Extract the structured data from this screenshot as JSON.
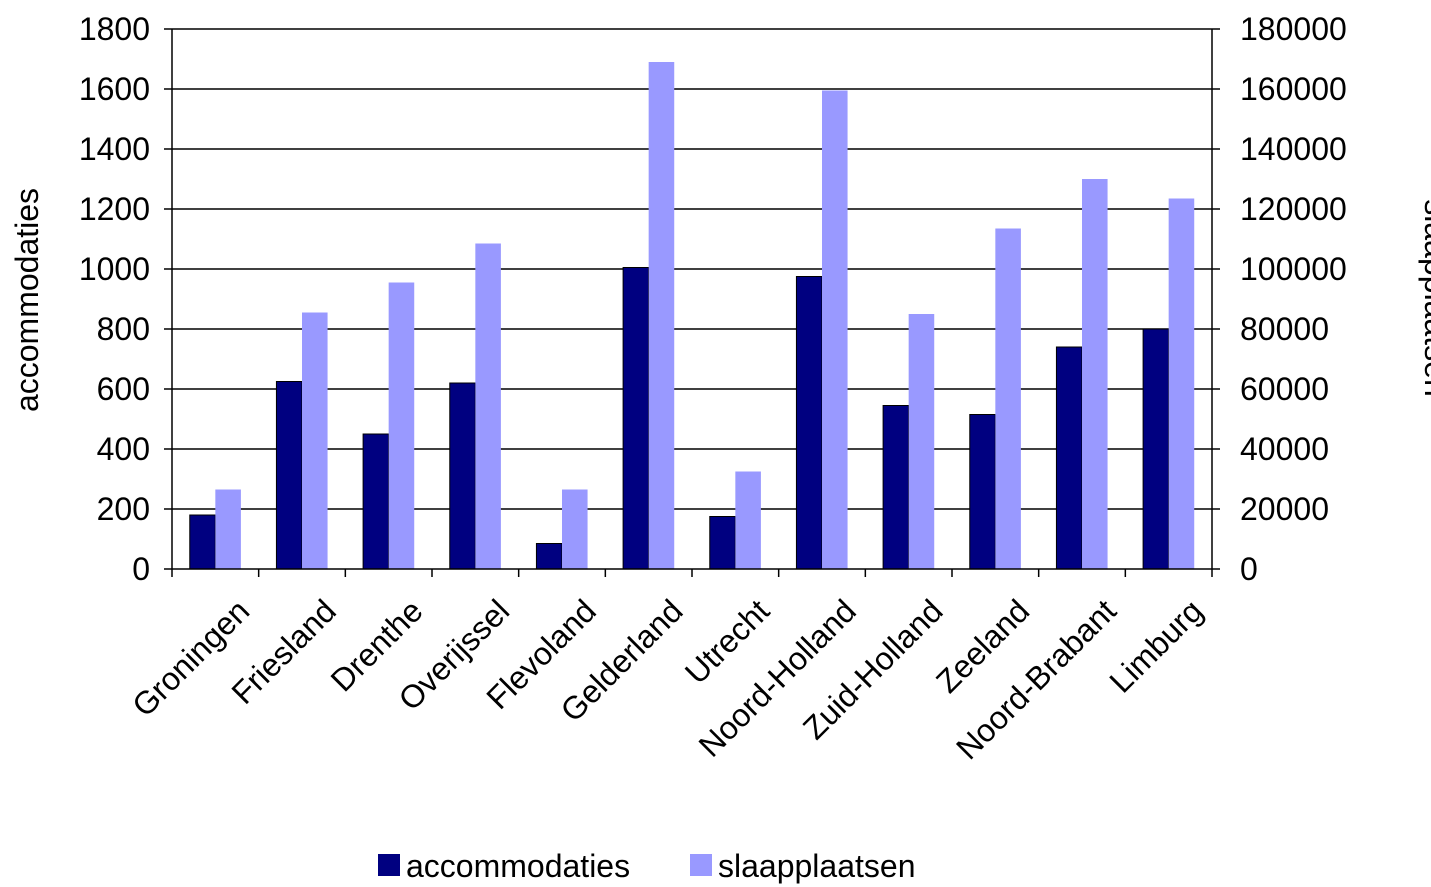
{
  "chart_data": {
    "type": "bar",
    "categories": [
      "Groningen",
      "Friesland",
      "Drenthe",
      "Overijssel",
      "Flevoland",
      "Gelderland",
      "Utrecht",
      "Noord-Holland",
      "Zuid-Holland",
      "Zeeland",
      "Noord-Brabant",
      "Limburg"
    ],
    "series": [
      {
        "name": "accommodaties",
        "axis": "left",
        "color": "#000080",
        "values": [
          180,
          625,
          450,
          620,
          85,
          1005,
          175,
          975,
          545,
          515,
          740,
          800
        ]
      },
      {
        "name": "slaapplaatsen",
        "axis": "right",
        "color": "#9999ff",
        "values": [
          26500,
          85500,
          95500,
          108500,
          26500,
          169000,
          32500,
          159500,
          85000,
          113500,
          130000,
          123500
        ]
      }
    ],
    "ylabel": "accommodaties",
    "y2label": "slaapplaatsen",
    "ylim": [
      0,
      1800
    ],
    "y2lim": [
      0,
      180000
    ],
    "yticks": [
      "0",
      "200",
      "400",
      "600",
      "800",
      "1000",
      "1200",
      "1400",
      "1600",
      "1800"
    ],
    "y2ticks": [
      "0",
      "20000",
      "40000",
      "60000",
      "80000",
      "100000",
      "120000",
      "140000",
      "160000",
      "180000"
    ],
    "grid": true,
    "legend": "bottom"
  }
}
